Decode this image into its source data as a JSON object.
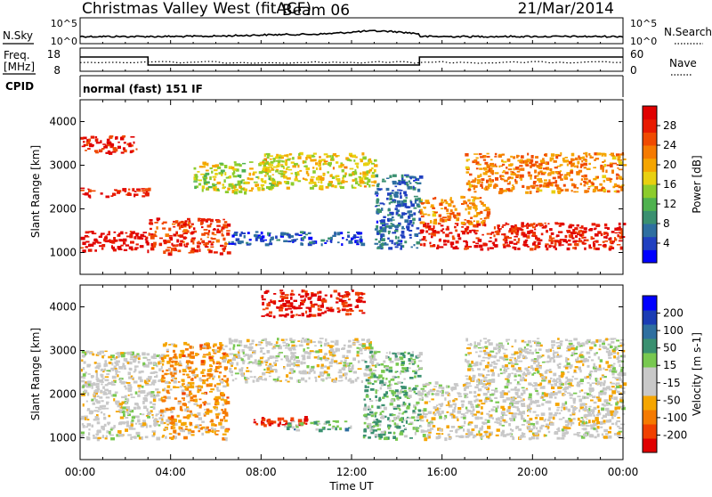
{
  "header": {
    "station": "Christmas Valley West (fitACF)",
    "beam": "Beam 06",
    "date": "21/Mar/2014"
  },
  "strips": {
    "nsky_label": "N.Sky",
    "nsearch_label": "N.Search",
    "nsky_ticks": [
      "10^5",
      "10^0"
    ],
    "nsearch_ticks": [
      "10^5",
      "10^0"
    ],
    "freq_label_1": "Freq.",
    "freq_label_2": "[MHz]",
    "freq_ticks": [
      "18",
      "8"
    ],
    "nave_label": "Nave",
    "nave_ticks": [
      "60",
      "0"
    ],
    "cpid_label": "CPID",
    "cpid_text": "normal (fast) 151 IF"
  },
  "colors": {
    "power": [
      "#0000ff",
      "#2040c0",
      "#2e6fa0",
      "#3a9070",
      "#4fb24f",
      "#8ccc2c",
      "#e8d010",
      "#f5a500",
      "#f57a00",
      "#f04a00",
      "#e81a00",
      "#e00000"
    ],
    "velocity": [
      "#e00000",
      "#f04000",
      "#f57a00",
      "#f5a500",
      "#c8c8c8",
      "#c8c8c8",
      "#78c850",
      "#3a9070",
      "#2e6fa0",
      "#1a3cb4",
      "#0000ff"
    ],
    "gray": "#c4c4bc"
  },
  "chart_data": [
    {
      "type": "heatmap",
      "name": "power",
      "ylabel": "Slant Range [km]",
      "y_ticks": [
        "1000",
        "2000",
        "3000",
        "4000"
      ],
      "ylim": [
        500,
        4500
      ],
      "x_ticks": [
        "00:00",
        "04:00",
        "08:00",
        "12:00",
        "16:00",
        "20:00",
        "00:00"
      ],
      "colorbar_label": "Power [dB]",
      "colorbar_ticks": [
        "4",
        "8",
        "12",
        "16",
        "20",
        "24",
        "28"
      ],
      "bands": [
        {
          "hours": [
            0.0,
            3.0
          ],
          "range_km": [
            1050,
            1500
          ],
          "level": 0.95
        },
        {
          "hours": [
            3.0,
            6.5
          ],
          "range_km": [
            1000,
            1800
          ],
          "level": 0.85
        },
        {
          "hours": [
            0.0,
            2.5
          ],
          "range_km": [
            3300,
            3700
          ],
          "level": 0.9
        },
        {
          "hours": [
            0.0,
            3.0
          ],
          "range_km": [
            2300,
            2500
          ],
          "level": 0.88
        },
        {
          "hours": [
            5.0,
            8.5
          ],
          "range_km": [
            2400,
            3100
          ],
          "level": 0.5
        },
        {
          "hours": [
            8.0,
            13.0
          ],
          "range_km": [
            2500,
            3300
          ],
          "level": 0.55
        },
        {
          "hours": [
            13.0,
            15.0
          ],
          "range_km": [
            1100,
            2800
          ],
          "level": 0.2
        },
        {
          "hours": [
            6.5,
            12.5
          ],
          "range_km": [
            1200,
            1500
          ],
          "level": 0.15
        },
        {
          "hours": [
            15.0,
            24.0
          ],
          "range_km": [
            1100,
            1700
          ],
          "level": 0.9
        },
        {
          "hours": [
            15.0,
            18.0
          ],
          "range_km": [
            1700,
            2300
          ],
          "level": 0.7
        },
        {
          "hours": [
            17.0,
            24.0
          ],
          "range_km": [
            2400,
            3300
          ],
          "level": 0.7
        }
      ]
    },
    {
      "type": "heatmap",
      "name": "velocity",
      "ylabel": "Slant Range [km]",
      "y_ticks": [
        "1000",
        "2000",
        "3000",
        "4000"
      ],
      "ylim": [
        500,
        4500
      ],
      "x_ticks": [
        "00:00",
        "04:00",
        "08:00",
        "12:00",
        "16:00",
        "20:00",
        "00:00"
      ],
      "xlabel": "Time UT",
      "colorbar_label": "Velocity [m s-1]",
      "colorbar_ticks": [
        "200",
        "100",
        "50",
        "15",
        "-15",
        "-50",
        "-100",
        "-200"
      ],
      "bands": [
        {
          "hours": [
            0.0,
            3.5
          ],
          "range_km": [
            1000,
            3000
          ],
          "level": 0.45
        },
        {
          "hours": [
            3.5,
            6.5
          ],
          "range_km": [
            1000,
            3200
          ],
          "level": 0.3
        },
        {
          "hours": [
            6.5,
            13.0
          ],
          "range_km": [
            2300,
            3300
          ],
          "level": 0.45
        },
        {
          "hours": [
            7.5,
            10.0
          ],
          "range_km": [
            1300,
            1500
          ],
          "level": 0.05
        },
        {
          "hours": [
            9.0,
            12.0
          ],
          "range_km": [
            1200,
            1400
          ],
          "level": 0.62
        },
        {
          "hours": [
            12.5,
            15.0
          ],
          "range_km": [
            1000,
            3000
          ],
          "level": 0.6
        },
        {
          "hours": [
            8.0,
            12.5
          ],
          "range_km": [
            3800,
            4400
          ],
          "level": 0.05
        },
        {
          "hours": [
            15.0,
            24.0
          ],
          "range_km": [
            1000,
            2300
          ],
          "level": 0.45
        },
        {
          "hours": [
            17.0,
            24.0
          ],
          "range_km": [
            2300,
            3300
          ],
          "level": 0.45
        }
      ]
    }
  ]
}
